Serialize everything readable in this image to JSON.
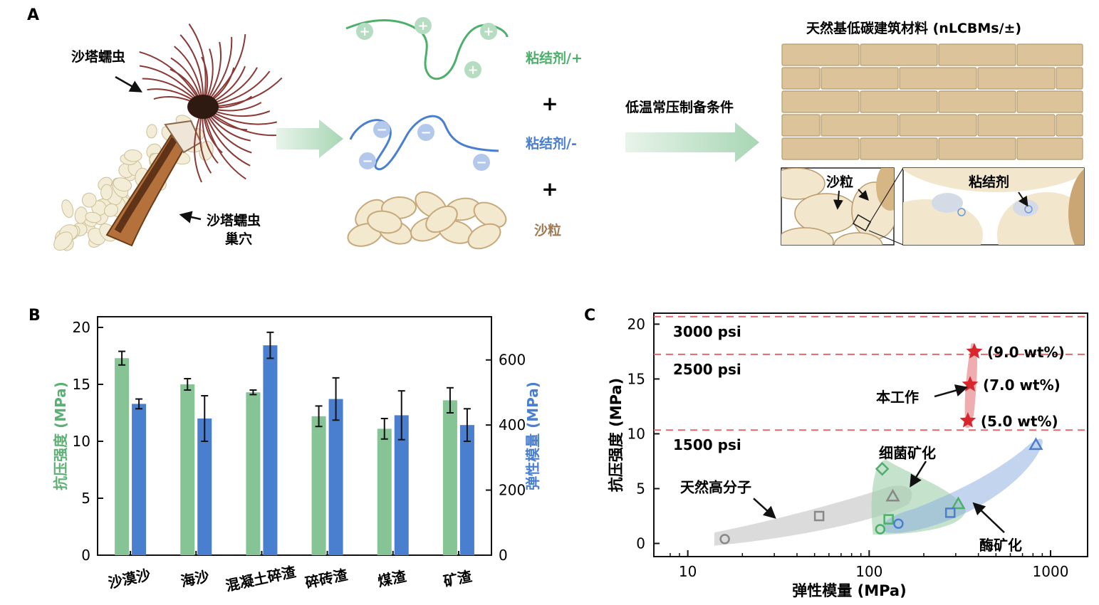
{
  "panel_a": {
    "label": "A",
    "worm_label": "沙塔蠕虫",
    "burrow_label_line1": "沙塔蠕虫",
    "burrow_label_line2": "巢穴",
    "binder_pos_label": "粘结剂/+",
    "binder_neg_label": "粘结剂/-",
    "sand_label": "沙粒",
    "plus_1": "+",
    "plus_2": "+",
    "process_label": "低温常压制备条件",
    "material_title": "天然基低碳建筑材料  (nLCBMs/±)",
    "inset_sand_label": "沙粒",
    "inset_binder_label": "粘结剂",
    "colors": {
      "positive": "#4caf6a",
      "negative": "#4a7fd0",
      "sand": "#a07a50",
      "brick": "#dcc39a"
    }
  },
  "panel_b": {
    "label": "B"
  },
  "panel_c": {
    "label": "C",
    "psi_lines": [
      {
        "label": "3000 psi",
        "mpa": 20.68
      },
      {
        "label": "2500 psi",
        "mpa": 17.24
      },
      {
        "label": "1500 psi",
        "mpa": 10.34
      }
    ],
    "annotations": {
      "this_work": "本工作",
      "bacterial": "细菌矿化",
      "natural_polymer": "天然高分子",
      "enzyme": "酶矿化"
    }
  },
  "chart_data": [
    {
      "type": "bar",
      "panel": "B",
      "categories": [
        "沙漠沙",
        "海沙",
        "混凝土碎渣",
        "碎砖渣",
        "煤渣",
        "矿渣"
      ],
      "ylabel": "抗压强度 (MPa)",
      "y2label": "弹性模量 (MPa)",
      "ylim": [
        0,
        20
      ],
      "y2lim": [
        0,
        700
      ],
      "yticks": [
        0,
        5,
        10,
        15,
        20
      ],
      "y2ticks": [
        0,
        200,
        400,
        600
      ],
      "series": [
        {
          "axis": "left",
          "color": "#86c495",
          "values": [
            17.3,
            15.0,
            14.3,
            12.2,
            11.1,
            13.6
          ],
          "errors": [
            0.6,
            0.5,
            0.2,
            0.9,
            0.9,
            1.1
          ]
        },
        {
          "axis": "right",
          "color": "#4a7fd0",
          "values": [
            465,
            420,
            645,
            480,
            430,
            400
          ],
          "errors": [
            15,
            70,
            40,
            65,
            75,
            50
          ]
        }
      ]
    },
    {
      "type": "scatter",
      "panel": "C",
      "xlabel": "弹性模量 (MPa)",
      "ylabel": "抗压强度 (MPa)",
      "xscale": "log",
      "xlim": [
        6.5,
        1600
      ],
      "ylim": [
        -1.2,
        21
      ],
      "xticks": [
        10,
        100,
        1000
      ],
      "yticks": [
        0,
        5,
        10,
        15,
        20
      ],
      "series": [
        {
          "group": "natural_polymer",
          "color": "#888888",
          "points": [
            {
              "x": 16,
              "y": 0.4,
              "marker": "circle"
            },
            {
              "x": 53,
              "y": 2.5,
              "marker": "square"
            },
            {
              "x": 135,
              "y": 4.3,
              "marker": "triangle"
            }
          ]
        },
        {
          "group": "bacterial",
          "color": "#4caf6a",
          "points": [
            {
              "x": 118,
              "y": 6.8,
              "marker": "diamond"
            },
            {
              "x": 115,
              "y": 1.3,
              "marker": "circle"
            },
            {
              "x": 128,
              "y": 2.2,
              "marker": "square"
            },
            {
              "x": 310,
              "y": 3.6,
              "marker": "triangle"
            }
          ]
        },
        {
          "group": "enzyme",
          "color": "#4a7fd0",
          "points": [
            {
              "x": 145,
              "y": 1.8,
              "marker": "circle"
            },
            {
              "x": 280,
              "y": 2.8,
              "marker": "square"
            },
            {
              "x": 830,
              "y": 9.0,
              "marker": "triangle"
            }
          ]
        },
        {
          "group": "this_work",
          "color": "#d9262e",
          "points": [
            {
              "x": 380,
              "y": 17.5,
              "marker": "star",
              "label": "(9.0 wt%)"
            },
            {
              "x": 360,
              "y": 14.5,
              "marker": "star",
              "label": "(7.0 wt%)"
            },
            {
              "x": 350,
              "y": 11.2,
              "marker": "star",
              "label": "(5.0 wt%)"
            }
          ]
        }
      ]
    }
  ]
}
